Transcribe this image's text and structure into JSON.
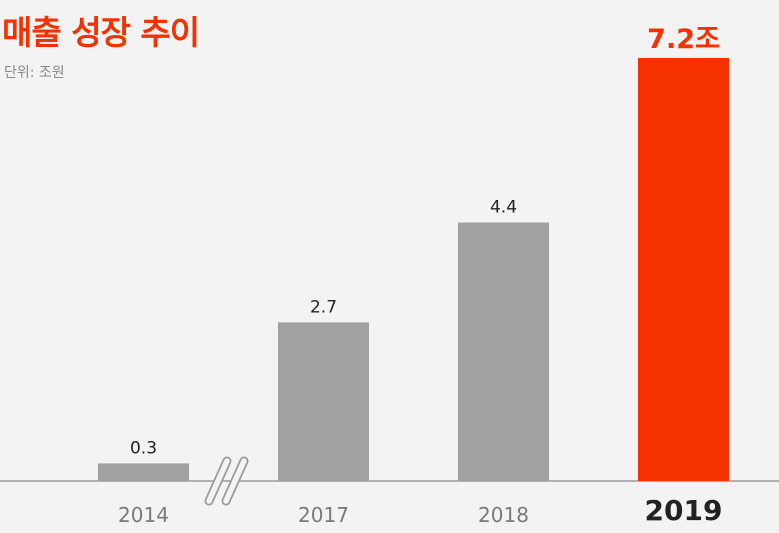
{
  "title": "매출 성장 추이",
  "unit_note": "단위: 조원",
  "colors": {
    "accent": "#f53100",
    "bar": "#a1a1a1",
    "axis": "#9a9a9a",
    "tick_label": "#7a7a7a",
    "value_label": "#222222",
    "highlight_tick": "#222222",
    "background": "#f3f3f3"
  },
  "chart_data": {
    "type": "bar",
    "categories": [
      "2014",
      "2017",
      "2018",
      "2019"
    ],
    "values": [
      0.3,
      2.7,
      4.4,
      7.2
    ],
    "value_labels": [
      "0.3",
      "2.7",
      "4.4",
      "7.2조"
    ],
    "highlight_index": 3,
    "axis_break_after_index": 0,
    "ylim": [
      0,
      7.2
    ],
    "y_axis_shown": false,
    "grid": false,
    "legend": "none"
  }
}
